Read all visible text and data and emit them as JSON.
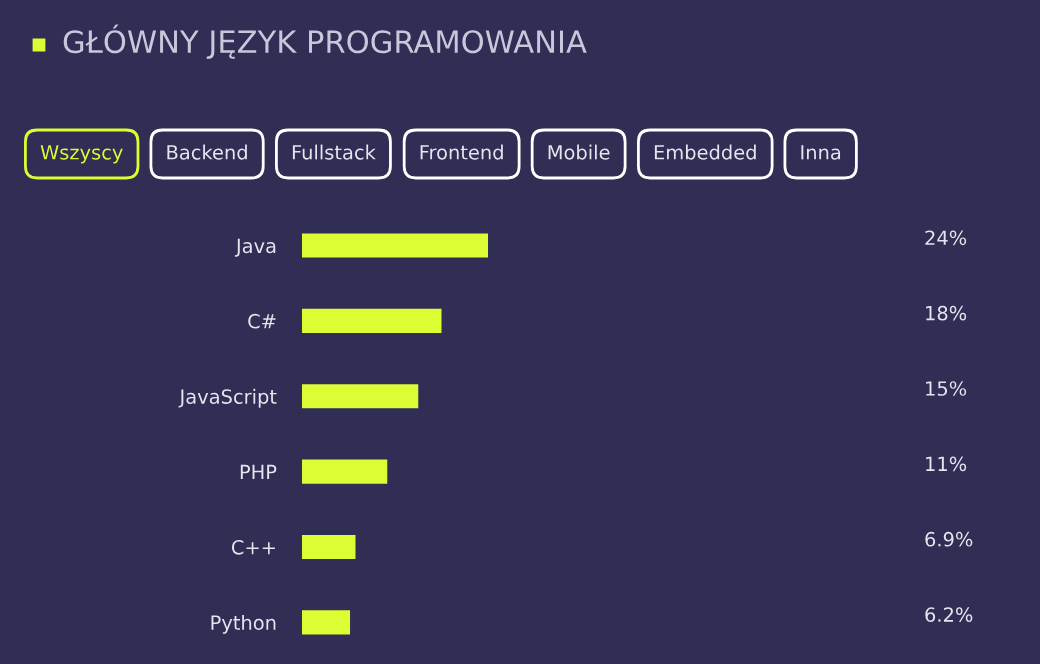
{
  "chart_data": {
    "type": "bar",
    "orientation": "horizontal",
    "title": "GŁÓWNY JĘZYK PROGRAMOWANIA",
    "annotations": [
      "Wszyscy",
      "Backend",
      "Fullstack",
      "Frontend",
      "Mobile",
      "Embedded",
      "Inna"
    ],
    "categories": [
      "Java",
      "C#",
      "JavaScript",
      "PHP",
      "C++",
      "Python"
    ],
    "values": [
      24,
      18,
      15,
      11,
      6.9,
      6.2
    ],
    "value_labels": [
      "24%",
      "18%",
      "15%",
      "11%",
      "6.9%",
      "6.2%"
    ],
    "color": "#dcfc34",
    "grid": false,
    "legend": false
  }
}
